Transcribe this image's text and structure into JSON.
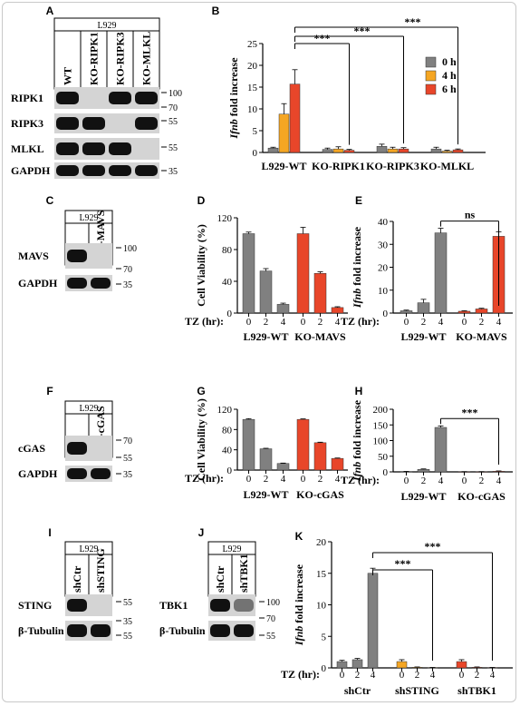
{
  "panels": {
    "A": {
      "letter": "A",
      "cell": "L929",
      "lanes": [
        "WT",
        "KO-RIPK1",
        "KO-RIPK3",
        "KO-MLKL"
      ],
      "rows": [
        {
          "label": "RIPK1",
          "markers": [
            "100",
            "70"
          ]
        },
        {
          "label": "RIPK3",
          "markers": [
            "55"
          ]
        },
        {
          "label": "MLKL",
          "markers": [
            "55"
          ]
        },
        {
          "label": "GAPDH",
          "markers": [
            "35"
          ]
        }
      ]
    },
    "C": {
      "letter": "C",
      "cell": "L929",
      "lanes": [
        "WT",
        "KO-MAVS"
      ],
      "rows": [
        {
          "label": "MAVS",
          "markers": [
            "100",
            "70"
          ]
        },
        {
          "label": "GAPDH",
          "markers": [
            "35"
          ]
        }
      ]
    },
    "F": {
      "letter": "F",
      "cell": "L929",
      "lanes": [
        "WT",
        "KO-cGAS"
      ],
      "rows": [
        {
          "label": "cGAS",
          "markers": [
            "70",
            "55"
          ]
        },
        {
          "label": "GAPDH",
          "markers": [
            "35"
          ]
        }
      ]
    },
    "I": {
      "letter": "I",
      "cell": "L929",
      "lanes": [
        "shCtr",
        "shSTING"
      ],
      "rows": [
        {
          "label": "STING",
          "markers": [
            "55",
            "35"
          ]
        },
        {
          "label": "β-Tubulin",
          "markers": [
            "55"
          ]
        }
      ]
    },
    "J": {
      "letter": "J",
      "cell": "L929",
      "lanes": [
        "shCtr",
        "shTBK1"
      ],
      "rows": [
        {
          "label": "TBK1",
          "markers": [
            "100",
            "70"
          ]
        },
        {
          "label": "β-Tubulin",
          "markers": [
            "55"
          ]
        }
      ]
    },
    "tz_label": "TZ (hr):"
  },
  "chart_data": [
    {
      "id": "B",
      "letter": "B",
      "type": "bar",
      "ylabel": "Ifnb fold increase",
      "ylim": [
        0,
        25
      ],
      "yticks": [
        0,
        5,
        10,
        15,
        20,
        25
      ],
      "groups": [
        "L929-WT",
        "KO-RIPK1",
        "KO-RIPK3",
        "KO-MLKL"
      ],
      "legend": [
        "0 h",
        "4 h",
        "6 h"
      ],
      "legend_position": "top-right",
      "colors": [
        "#808080",
        "#f5a623",
        "#e8462a"
      ],
      "values": [
        [
          1,
          8.8,
          15.7
        ],
        [
          0.7,
          0.8,
          0.5
        ],
        [
          1.4,
          0.8,
          0.8
        ],
        [
          0.8,
          0.3,
          0.6
        ]
      ],
      "errors": [
        [
          0.2,
          2.4,
          3.3
        ],
        [
          0.3,
          0.5,
          0.2
        ],
        [
          0.5,
          0.4,
          0.3
        ],
        [
          0.4,
          0.2,
          0.2
        ]
      ],
      "significance": [
        {
          "from": "L929-WT",
          "to": "KO-RIPK1",
          "label": "***"
        },
        {
          "from": "L929-WT",
          "to": "KO-RIPK3",
          "label": "***"
        },
        {
          "from": "L929-WT",
          "to": "KO-MLKL",
          "label": "***"
        }
      ]
    },
    {
      "id": "D",
      "letter": "D",
      "type": "bar",
      "ylabel": "Cell Viability (%)",
      "ylim": [
        0,
        120
      ],
      "yticks": [
        0,
        40,
        80,
        120
      ],
      "xticks": [
        "0",
        "2",
        "4"
      ],
      "groups": [
        "L929-WT",
        "KO-MAVS"
      ],
      "colors": [
        "#808080",
        "#e8462a"
      ],
      "values": [
        [
          100,
          53,
          11
        ],
        [
          100,
          50,
          7
        ]
      ],
      "errors": [
        [
          2,
          3,
          1.5
        ],
        [
          8,
          2,
          1
        ]
      ]
    },
    {
      "id": "E",
      "letter": "E",
      "type": "bar",
      "ylabel": "Ifnb fold increase",
      "ylim": [
        0,
        40
      ],
      "yticks": [
        0,
        10,
        20,
        30,
        40
      ],
      "xticks": [
        "0",
        "2",
        "4"
      ],
      "groups": [
        "L929-WT",
        "KO-MAVS"
      ],
      "colors": [
        "#808080",
        "#e8462a"
      ],
      "values": [
        [
          1,
          4.5,
          35
        ],
        [
          0.8,
          1.8,
          33.5
        ]
      ],
      "errors": [
        [
          0.3,
          1.5,
          2
        ],
        [
          0.2,
          0.3,
          2
        ]
      ],
      "significance": [
        {
          "from": "L929-WT",
          "to": "KO-MAVS",
          "label": "ns"
        }
      ]
    },
    {
      "id": "G",
      "letter": "G",
      "type": "bar",
      "ylabel": "Cell Viability (%)",
      "ylim": [
        0,
        120
      ],
      "yticks": [
        0,
        40,
        80,
        120
      ],
      "xticks": [
        "0",
        "2",
        "4"
      ],
      "groups": [
        "L929-WT",
        "KO-cGAS"
      ],
      "colors": [
        "#808080",
        "#e8462a"
      ],
      "values": [
        [
          100,
          42,
          13
        ],
        [
          100,
          54,
          23
        ]
      ],
      "errors": [
        [
          1.5,
          1,
          0.8
        ],
        [
          1,
          1,
          0.8
        ]
      ]
    },
    {
      "id": "H",
      "letter": "H",
      "type": "bar",
      "ylabel": "Ifnb fold increase",
      "ylim": [
        0,
        200
      ],
      "yticks": [
        0,
        50,
        100,
        150,
        200
      ],
      "xticks": [
        "0",
        "2",
        "4"
      ],
      "groups": [
        "L929-WT",
        "KO-cGAS"
      ],
      "colors": [
        "#808080",
        "#e8462a"
      ],
      "values": [
        [
          1,
          8,
          142
        ],
        [
          0.5,
          0.5,
          2
        ]
      ],
      "errors": [
        [
          0.5,
          1.5,
          5
        ],
        [
          0.2,
          0.2,
          1
        ]
      ],
      "significance": [
        {
          "from": "L929-WT",
          "to": "KO-cGAS",
          "label": "***"
        }
      ]
    },
    {
      "id": "K",
      "letter": "K",
      "type": "bar",
      "ylabel": "Ifnb fold increase",
      "ylim": [
        0,
        20
      ],
      "yticks": [
        0,
        5,
        10,
        15,
        20
      ],
      "xticks": [
        "0",
        "2",
        "4"
      ],
      "groups": [
        "shCtr",
        "shSTING",
        "shTBK1"
      ],
      "colors": [
        "#808080",
        "#f5a623",
        "#e8462a"
      ],
      "values": [
        [
          1,
          1.3,
          15
        ],
        [
          1,
          0.1,
          0.05
        ],
        [
          1,
          0.1,
          0.05
        ]
      ],
      "errors": [
        [
          0.2,
          0.2,
          0.8
        ],
        [
          0.3,
          0.05,
          0.02
        ],
        [
          0.3,
          0.05,
          0.02
        ]
      ],
      "significance": [
        {
          "from": "shCtr",
          "to": "shSTING",
          "label": "***"
        },
        {
          "from": "shCtr",
          "to": "shTBK1",
          "label": "***"
        }
      ]
    }
  ]
}
